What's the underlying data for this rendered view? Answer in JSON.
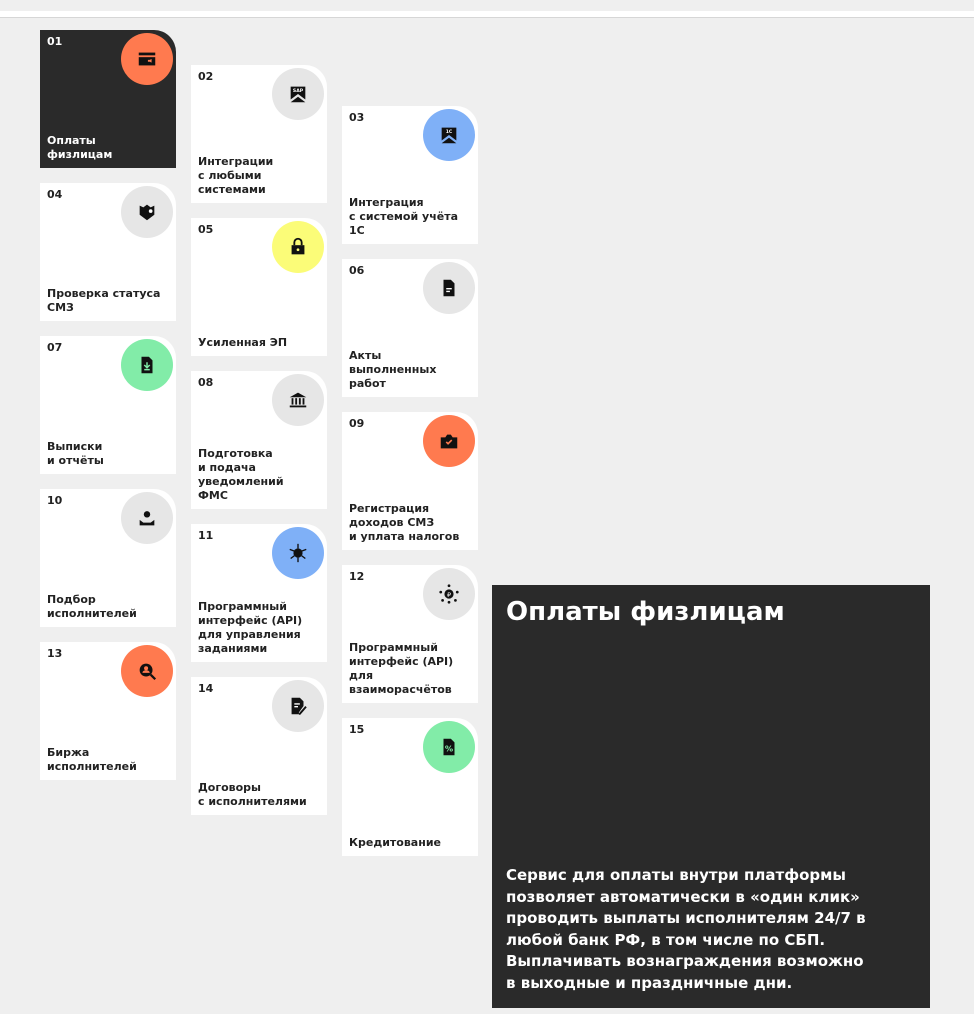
{
  "colors": {
    "orange": "#ff7a4f",
    "gray": "#e6e6e6",
    "blue": "#7fb0f7",
    "yellow": "#fbfc78",
    "green": "#82eca8",
    "dark": "#2a2a2a"
  },
  "cards": [
    {
      "num": "01",
      "label": "Оплаты\nфизлицам",
      "icon": "card-payment-icon",
      "color": "#ff7a4f",
      "active": true
    },
    {
      "num": "02",
      "label": "Интеграции\nс любыми\nсистемами",
      "icon": "sap-icon",
      "color": "#e6e6e6",
      "icontext": "SAP"
    },
    {
      "num": "03",
      "label": "Интеграция\nс системой учёта\n1С",
      "icon": "1c-icon",
      "color": "#7fb0f7",
      "icontext": "1С"
    },
    {
      "num": "04",
      "label": "Проверка статуса\nСМЗ",
      "icon": "shield-check-icon",
      "color": "#e6e6e6"
    },
    {
      "num": "05",
      "label": "Усиленная ЭП",
      "icon": "lock-icon",
      "color": "#fbfc78"
    },
    {
      "num": "06",
      "label": "Акты\nвыполненных\nработ",
      "icon": "document-icon",
      "color": "#e6e6e6"
    },
    {
      "num": "07",
      "label": "Выписки\nи отчёты",
      "icon": "download-document-icon",
      "color": "#82eca8"
    },
    {
      "num": "08",
      "label": "Подготовка\nи подача\nуведомлений\nФМС",
      "icon": "bank-icon",
      "color": "#e6e6e6"
    },
    {
      "num": "09",
      "label": "Регистрация\nдоходов СМЗ\nи уплата налогов",
      "icon": "wallet-check-icon",
      "color": "#ff7a4f"
    },
    {
      "num": "10",
      "label": "Подбор\nисполнителей",
      "icon": "user-select-icon",
      "color": "#e6e6e6"
    },
    {
      "num": "11",
      "label": "Программный\nинтерфейс (API)\nдля управления\nзаданиями",
      "icon": "api-network-icon",
      "color": "#7fb0f7"
    },
    {
      "num": "12",
      "label": "Программный\nинтерфейс (API)\nдля\nвзаиморасчётов",
      "icon": "api-ruble-icon",
      "color": "#e6e6e6"
    },
    {
      "num": "13",
      "label": "Биржа\nисполнителей",
      "icon": "user-search-icon",
      "color": "#ff7a4f"
    },
    {
      "num": "14",
      "label": "Договоры\nс исполнителями",
      "icon": "contract-edit-icon",
      "color": "#e6e6e6"
    },
    {
      "num": "15",
      "label": "Кредитование",
      "icon": "percent-document-icon",
      "color": "#82eca8"
    }
  ],
  "panel": {
    "title": "Оплаты физлицам",
    "description": "Сервис для оплаты внутри платформы позволяет автоматически в «один клик» проводить выплаты исполнителям 24/7 в любой банк РФ, в том числе по СБП. Выплачивать вознаграждения возможно в выходные и праздничные дни."
  }
}
